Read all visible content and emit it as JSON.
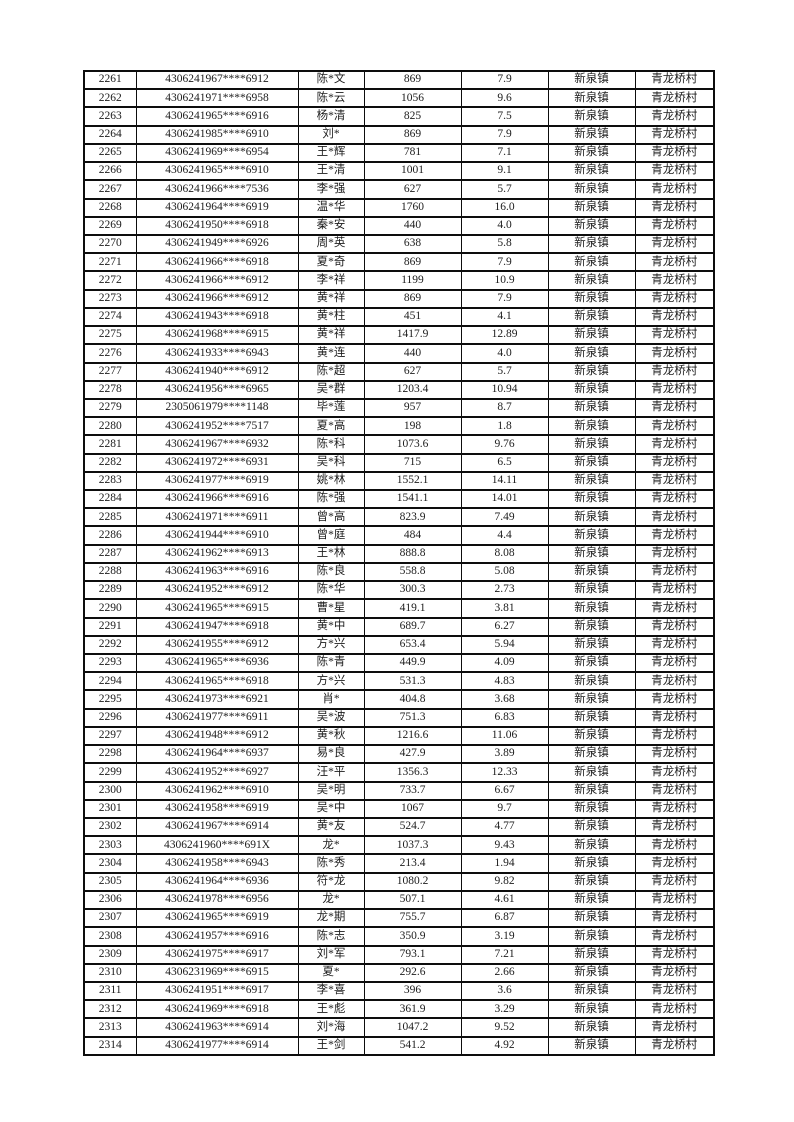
{
  "page": {
    "background_color": "#ffffff",
    "text_color": "#1c1c1c",
    "grid_color": "#0d0d0d"
  },
  "table": {
    "columns": [
      "seq",
      "id",
      "name",
      "amount",
      "value",
      "town",
      "village"
    ],
    "rows": [
      [
        "2261",
        "4306241967****6912",
        "陈*文",
        "869",
        "7.9",
        "新泉镇",
        "青龙桥村"
      ],
      [
        "2262",
        "4306241971****6958",
        "陈*云",
        "1056",
        "9.6",
        "新泉镇",
        "青龙桥村"
      ],
      [
        "2263",
        "4306241965****6916",
        "杨*清",
        "825",
        "7.5",
        "新泉镇",
        "青龙桥村"
      ],
      [
        "2264",
        "4306241985****6910",
        "刘*",
        "869",
        "7.9",
        "新泉镇",
        "青龙桥村"
      ],
      [
        "2265",
        "4306241969****6954",
        "王*辉",
        "781",
        "7.1",
        "新泉镇",
        "青龙桥村"
      ],
      [
        "2266",
        "4306241965****6910",
        "王*清",
        "1001",
        "9.1",
        "新泉镇",
        "青龙桥村"
      ],
      [
        "2267",
        "4306241966****7536",
        "李*强",
        "627",
        "5.7",
        "新泉镇",
        "青龙桥村"
      ],
      [
        "2268",
        "4306241964****6919",
        "温*华",
        "1760",
        "16.0",
        "新泉镇",
        "青龙桥村"
      ],
      [
        "2269",
        "4306241950****6918",
        "秦*安",
        "440",
        "4.0",
        "新泉镇",
        "青龙桥村"
      ],
      [
        "2270",
        "4306241949****6926",
        "周*英",
        "638",
        "5.8",
        "新泉镇",
        "青龙桥村"
      ],
      [
        "2271",
        "4306241966****6918",
        "夏*奇",
        "869",
        "7.9",
        "新泉镇",
        "青龙桥村"
      ],
      [
        "2272",
        "4306241966****6912",
        "李*祥",
        "1199",
        "10.9",
        "新泉镇",
        "青龙桥村"
      ],
      [
        "2273",
        "4306241966****6912",
        "黄*祥",
        "869",
        "7.9",
        "新泉镇",
        "青龙桥村"
      ],
      [
        "2274",
        "4306241943****6918",
        "黄*柱",
        "451",
        "4.1",
        "新泉镇",
        "青龙桥村"
      ],
      [
        "2275",
        "4306241968****6915",
        "黄*祥",
        "1417.9",
        "12.89",
        "新泉镇",
        "青龙桥村"
      ],
      [
        "2276",
        "4306241933****6943",
        "黄*连",
        "440",
        "4.0",
        "新泉镇",
        "青龙桥村"
      ],
      [
        "2277",
        "4306241940****6912",
        "陈*超",
        "627",
        "5.7",
        "新泉镇",
        "青龙桥村"
      ],
      [
        "2278",
        "4306241956****6965",
        "吴*群",
        "1203.4",
        "10.94",
        "新泉镇",
        "青龙桥村"
      ],
      [
        "2279",
        "2305061979****1148",
        "毕*莲",
        "957",
        "8.7",
        "新泉镇",
        "青龙桥村"
      ],
      [
        "2280",
        "4306241952****7517",
        "夏*高",
        "198",
        "1.8",
        "新泉镇",
        "青龙桥村"
      ],
      [
        "2281",
        "4306241967****6932",
        "陈*科",
        "1073.6",
        "9.76",
        "新泉镇",
        "青龙桥村"
      ],
      [
        "2282",
        "4306241972****6931",
        "吴*科",
        "715",
        "6.5",
        "新泉镇",
        "青龙桥村"
      ],
      [
        "2283",
        "4306241977****6919",
        "姚*林",
        "1552.1",
        "14.11",
        "新泉镇",
        "青龙桥村"
      ],
      [
        "2284",
        "4306241966****6916",
        "陈*强",
        "1541.1",
        "14.01",
        "新泉镇",
        "青龙桥村"
      ],
      [
        "2285",
        "4306241971****6911",
        "曾*高",
        "823.9",
        "7.49",
        "新泉镇",
        "青龙桥村"
      ],
      [
        "2286",
        "4306241944****6910",
        "曾*庭",
        "484",
        "4.4",
        "新泉镇",
        "青龙桥村"
      ],
      [
        "2287",
        "4306241962****6913",
        "王*林",
        "888.8",
        "8.08",
        "新泉镇",
        "青龙桥村"
      ],
      [
        "2288",
        "4306241963****6916",
        "陈*良",
        "558.8",
        "5.08",
        "新泉镇",
        "青龙桥村"
      ],
      [
        "2289",
        "4306241952****6912",
        "陈*华",
        "300.3",
        "2.73",
        "新泉镇",
        "青龙桥村"
      ],
      [
        "2290",
        "4306241965****6915",
        "曹*星",
        "419.1",
        "3.81",
        "新泉镇",
        "青龙桥村"
      ],
      [
        "2291",
        "4306241947****6918",
        "黄*中",
        "689.7",
        "6.27",
        "新泉镇",
        "青龙桥村"
      ],
      [
        "2292",
        "4306241955****6912",
        "方*兴",
        "653.4",
        "5.94",
        "新泉镇",
        "青龙桥村"
      ],
      [
        "2293",
        "4306241965****6936",
        "陈*青",
        "449.9",
        "4.09",
        "新泉镇",
        "青龙桥村"
      ],
      [
        "2294",
        "4306241965****6918",
        "方*兴",
        "531.3",
        "4.83",
        "新泉镇",
        "青龙桥村"
      ],
      [
        "2295",
        "4306241973****6921",
        "肖*",
        "404.8",
        "3.68",
        "新泉镇",
        "青龙桥村"
      ],
      [
        "2296",
        "4306241977****6911",
        "吴*波",
        "751.3",
        "6.83",
        "新泉镇",
        "青龙桥村"
      ],
      [
        "2297",
        "4306241948****6912",
        "黄*秋",
        "1216.6",
        "11.06",
        "新泉镇",
        "青龙桥村"
      ],
      [
        "2298",
        "4306241964****6937",
        "易*良",
        "427.9",
        "3.89",
        "新泉镇",
        "青龙桥村"
      ],
      [
        "2299",
        "4306241952****6927",
        "汪*平",
        "1356.3",
        "12.33",
        "新泉镇",
        "青龙桥村"
      ],
      [
        "2300",
        "4306241962****6910",
        "吴*明",
        "733.7",
        "6.67",
        "新泉镇",
        "青龙桥村"
      ],
      [
        "2301",
        "4306241958****6919",
        "吴*中",
        "1067",
        "9.7",
        "新泉镇",
        "青龙桥村"
      ],
      [
        "2302",
        "4306241967****6914",
        "黄*友",
        "524.7",
        "4.77",
        "新泉镇",
        "青龙桥村"
      ],
      [
        "2303",
        "4306241960****691X",
        "龙*",
        "1037.3",
        "9.43",
        "新泉镇",
        "青龙桥村"
      ],
      [
        "2304",
        "4306241958****6943",
        "陈*秀",
        "213.4",
        "1.94",
        "新泉镇",
        "青龙桥村"
      ],
      [
        "2305",
        "4306241964****6936",
        "符*龙",
        "1080.2",
        "9.82",
        "新泉镇",
        "青龙桥村"
      ],
      [
        "2306",
        "4306241978****6956",
        "龙*",
        "507.1",
        "4.61",
        "新泉镇",
        "青龙桥村"
      ],
      [
        "2307",
        "4306241965****6919",
        "龙*期",
        "755.7",
        "6.87",
        "新泉镇",
        "青龙桥村"
      ],
      [
        "2308",
        "4306241957****6916",
        "陈*志",
        "350.9",
        "3.19",
        "新泉镇",
        "青龙桥村"
      ],
      [
        "2309",
        "4306241975****6917",
        "刘*军",
        "793.1",
        "7.21",
        "新泉镇",
        "青龙桥村"
      ],
      [
        "2310",
        "4306231969****6915",
        "夏*",
        "292.6",
        "2.66",
        "新泉镇",
        "青龙桥村"
      ],
      [
        "2311",
        "4306241951****6917",
        "李*喜",
        "396",
        "3.6",
        "新泉镇",
        "青龙桥村"
      ],
      [
        "2312",
        "4306241969****6918",
        "王*彪",
        "361.9",
        "3.29",
        "新泉镇",
        "青龙桥村"
      ],
      [
        "2313",
        "4306241963****6914",
        "刘*海",
        "1047.2",
        "9.52",
        "新泉镇",
        "青龙桥村"
      ],
      [
        "2314",
        "4306241977****6914",
        "王*剑",
        "541.2",
        "4.92",
        "新泉镇",
        "青龙桥村"
      ]
    ]
  }
}
